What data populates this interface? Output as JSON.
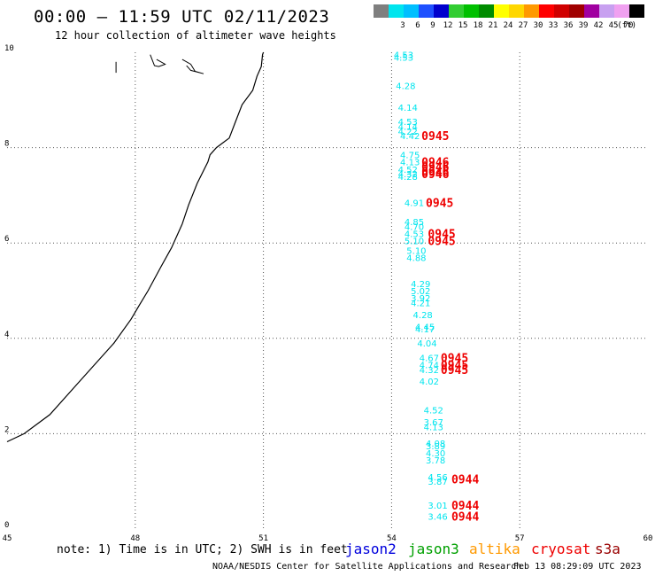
{
  "header": {
    "title": "00:00 – 11:59 UTC 02/11/2023",
    "subtitle": "12 hour collection of altimeter wave heights"
  },
  "colorbar": {
    "unit": "(ft)",
    "swatches": [
      {
        "color": "#7f7f7f",
        "label": ""
      },
      {
        "color": "#00e5ee",
        "label": "3"
      },
      {
        "color": "#00bfff",
        "label": "6"
      },
      {
        "color": "#1e50ff",
        "label": "9"
      },
      {
        "color": "#0000cd",
        "label": "12"
      },
      {
        "color": "#32cd32",
        "label": "15"
      },
      {
        "color": "#00c000",
        "label": "18"
      },
      {
        "color": "#008c00",
        "label": "21"
      },
      {
        "color": "#ffff00",
        "label": "24"
      },
      {
        "color": "#ffd700",
        "label": "27"
      },
      {
        "color": "#ff9900",
        "label": "30"
      },
      {
        "color": "#ff0000",
        "label": "33"
      },
      {
        "color": "#d00000",
        "label": "36"
      },
      {
        "color": "#a00000",
        "label": "39"
      },
      {
        "color": "#a000a0",
        "label": "42"
      },
      {
        "color": "#c8a0f0",
        "label": "45"
      },
      {
        "color": "#f0a0f0",
        "label": "70"
      },
      {
        "color": "#000000",
        "label": ""
      }
    ]
  },
  "map_data": {
    "lon_range": [
      45,
      60
    ],
    "lat_range": [
      0,
      10
    ],
    "lon_ticks": [
      "45",
      "48",
      "51",
      "54",
      "57",
      "60"
    ],
    "lat_ticks": [
      "0",
      "2",
      "4",
      "6",
      "8",
      "10"
    ],
    "coastline": [
      [
        45.0,
        1.83
      ],
      [
        45.4,
        2.0
      ],
      [
        46.0,
        2.4
      ],
      [
        46.6,
        3.0
      ],
      [
        47.0,
        3.4
      ],
      [
        47.5,
        3.9
      ],
      [
        47.9,
        4.4
      ],
      [
        48.1,
        4.7
      ],
      [
        48.3,
        5.0
      ],
      [
        48.6,
        5.5
      ],
      [
        48.85,
        5.9
      ],
      [
        49.1,
        6.4
      ],
      [
        49.25,
        6.8
      ],
      [
        49.45,
        7.25
      ],
      [
        49.7,
        7.7
      ],
      [
        49.75,
        7.85
      ],
      [
        49.9,
        8.0
      ],
      [
        50.2,
        8.2
      ],
      [
        50.35,
        8.55
      ],
      [
        50.5,
        8.9
      ],
      [
        50.75,
        9.2
      ],
      [
        50.85,
        9.5
      ],
      [
        50.95,
        9.7
      ],
      [
        50.98,
        9.95
      ],
      [
        51.0,
        10.0
      ]
    ],
    "islands": [
      [
        [
          47.55,
          9.8
        ],
        [
          47.55,
          9.57
        ]
      ],
      [
        [
          48.35,
          9.95
        ],
        [
          48.45,
          9.72
        ],
        [
          48.55,
          9.7
        ],
        [
          48.7,
          9.75
        ],
        [
          48.5,
          9.85
        ]
      ],
      [
        [
          49.1,
          9.85
        ],
        [
          49.3,
          9.75
        ],
        [
          49.4,
          9.6
        ],
        [
          49.6,
          9.55
        ],
        [
          49.3,
          9.62
        ],
        [
          49.2,
          9.72
        ]
      ]
    ],
    "obs_color": "#00e5ee",
    "time_color": "#ee0000",
    "observations": [
      {
        "lon": 54.05,
        "lat": 9.95,
        "value": "4.53"
      },
      {
        "lon": 54.05,
        "lat": 9.9,
        "value": "4.53"
      },
      {
        "lon": 54.1,
        "lat": 9.3,
        "value": "4.28"
      },
      {
        "lon": 54.15,
        "lat": 8.85,
        "value": "4.14"
      },
      {
        "lon": 54.15,
        "lat": 8.55,
        "value": "4.53"
      },
      {
        "lon": 54.15,
        "lat": 8.45,
        "value": "4.14"
      },
      {
        "lon": 54.15,
        "lat": 8.35,
        "value": "4.22"
      },
      {
        "lon": 54.2,
        "lat": 8.25,
        "value": "4.42"
      },
      {
        "lon": 54.2,
        "lat": 7.85,
        "value": "4.75"
      },
      {
        "lon": 54.2,
        "lat": 7.7,
        "value": "4.13"
      },
      {
        "lon": 54.15,
        "lat": 7.55,
        "value": "4.52"
      },
      {
        "lon": 54.15,
        "lat": 7.45,
        "value": "4.32"
      },
      {
        "lon": 54.15,
        "lat": 7.4,
        "value": "4.28"
      },
      {
        "lon": 54.3,
        "lat": 6.85,
        "value": "4.91"
      },
      {
        "lon": 54.3,
        "lat": 6.45,
        "value": "4.85"
      },
      {
        "lon": 54.3,
        "lat": 6.35,
        "value": "4.70"
      },
      {
        "lon": 54.3,
        "lat": 6.2,
        "value": "4.53"
      },
      {
        "lon": 54.3,
        "lat": 6.05,
        "value": "5.10"
      },
      {
        "lon": 54.35,
        "lat": 5.85,
        "value": "5.10"
      },
      {
        "lon": 54.35,
        "lat": 5.7,
        "value": "4.88"
      },
      {
        "lon": 54.45,
        "lat": 5.15,
        "value": "4.29"
      },
      {
        "lon": 54.45,
        "lat": 5.0,
        "value": "5.02"
      },
      {
        "lon": 54.45,
        "lat": 4.85,
        "value": "3.92"
      },
      {
        "lon": 54.45,
        "lat": 4.75,
        "value": "4.21"
      },
      {
        "lon": 54.5,
        "lat": 4.5,
        "value": "4.28"
      },
      {
        "lon": 54.55,
        "lat": 4.25,
        "value": "4.45"
      },
      {
        "lon": 54.55,
        "lat": 4.2,
        "value": "4.17"
      },
      {
        "lon": 54.6,
        "lat": 3.9,
        "value": "4.04"
      },
      {
        "lon": 54.65,
        "lat": 3.6,
        "value": "4.67"
      },
      {
        "lon": 54.65,
        "lat": 3.45,
        "value": "4.74"
      },
      {
        "lon": 54.65,
        "lat": 3.35,
        "value": "4.32"
      },
      {
        "lon": 54.65,
        "lat": 3.1,
        "value": "4.02"
      },
      {
        "lon": 54.75,
        "lat": 2.5,
        "value": "4.52"
      },
      {
        "lon": 54.75,
        "lat": 2.25,
        "value": "3.67"
      },
      {
        "lon": 54.75,
        "lat": 2.15,
        "value": "4.13"
      },
      {
        "lon": 54.8,
        "lat": 1.8,
        "value": "4.08"
      },
      {
        "lon": 54.8,
        "lat": 1.75,
        "value": "3.89"
      },
      {
        "lon": 54.8,
        "lat": 1.6,
        "value": "4.30"
      },
      {
        "lon": 54.8,
        "lat": 1.45,
        "value": "3.78"
      },
      {
        "lon": 54.85,
        "lat": 1.1,
        "value": "4.56"
      },
      {
        "lon": 54.85,
        "lat": 1.0,
        "value": "3.87"
      },
      {
        "lon": 54.85,
        "lat": 0.5,
        "value": "3.01"
      },
      {
        "lon": 54.85,
        "lat": 0.27,
        "value": "3.46"
      }
    ],
    "time_labels": [
      {
        "lon": 54.7,
        "lat": 8.25,
        "value": "0945"
      },
      {
        "lon": 54.7,
        "lat": 7.7,
        "value": "0946"
      },
      {
        "lon": 54.7,
        "lat": 7.6,
        "value": "0946"
      },
      {
        "lon": 54.7,
        "lat": 7.5,
        "value": "0946"
      },
      {
        "lon": 54.7,
        "lat": 7.45,
        "value": "0946"
      },
      {
        "lon": 54.8,
        "lat": 6.85,
        "value": "0945"
      },
      {
        "lon": 54.85,
        "lat": 6.2,
        "value": "0945"
      },
      {
        "lon": 54.85,
        "lat": 6.05,
        "value": "0945"
      },
      {
        "lon": 55.15,
        "lat": 3.6,
        "value": "0945"
      },
      {
        "lon": 55.15,
        "lat": 3.45,
        "value": "0945"
      },
      {
        "lon": 55.15,
        "lat": 3.35,
        "value": "0945"
      },
      {
        "lon": 55.4,
        "lat": 1.05,
        "value": "0944"
      },
      {
        "lon": 55.4,
        "lat": 0.5,
        "value": "0944"
      },
      {
        "lon": 55.4,
        "lat": 0.27,
        "value": "0944"
      }
    ]
  },
  "footer": {
    "note": "note: 1) Time is in UTC; 2) SWH is in feet",
    "satellites": [
      {
        "name": "jason2",
        "color": "#0000dd"
      },
      {
        "name": "jason3",
        "color": "#00a000"
      },
      {
        "name": "altika",
        "color": "#ff9900"
      },
      {
        "name": "cryosat",
        "color": "#ee0000"
      },
      {
        "name": "s3a",
        "color": "#990000"
      }
    ],
    "credit": "NOAA/NESDIS Center for Satellite Applications and Research",
    "timestamp": "Feb 13 08:29:09 UTC 2023"
  }
}
